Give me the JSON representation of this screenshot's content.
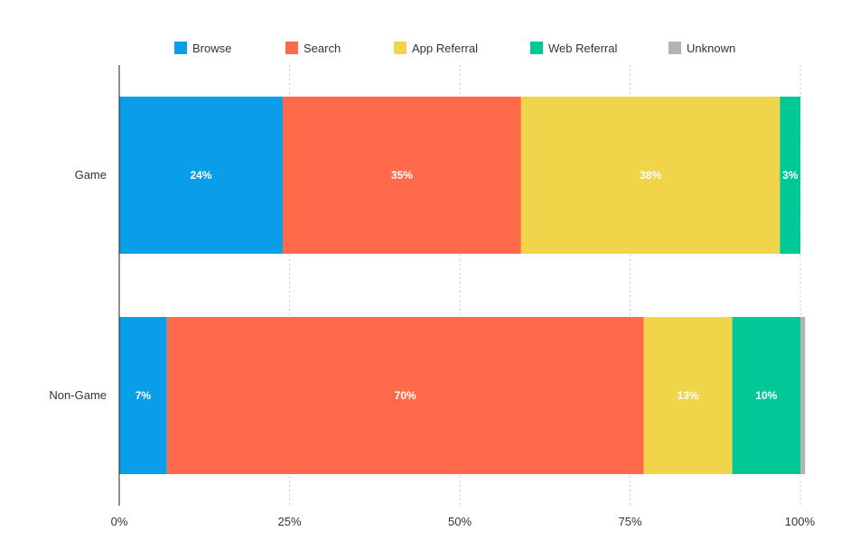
{
  "chart_data": {
    "type": "bar",
    "orientation": "horizontal",
    "stacked": true,
    "categories": [
      "Game",
      "Non-Game"
    ],
    "series": [
      {
        "name": "Browse",
        "color": "#0a9de8",
        "values": [
          24,
          7
        ],
        "labels": [
          "24%",
          "7%"
        ]
      },
      {
        "name": "Search",
        "color": "#ff6b4a",
        "values": [
          35,
          70
        ],
        "labels": [
          "35%",
          "70%"
        ]
      },
      {
        "name": "App Referral",
        "color": "#f0d44a",
        "values": [
          38,
          13
        ],
        "labels": [
          "38%",
          "13%"
        ]
      },
      {
        "name": "Web Referral",
        "color": "#00c896",
        "values": [
          3,
          10
        ],
        "labels": [
          "3%",
          "10%"
        ]
      },
      {
        "name": "Unknown",
        "color": "#b3b3b3",
        "values": [
          0,
          0.7
        ],
        "labels": [
          "",
          ""
        ]
      }
    ],
    "xlim": [
      0,
      100
    ],
    "xticks": [
      0,
      25,
      50,
      75,
      100
    ],
    "xtick_labels": [
      "0%",
      "25%",
      "50%",
      "75%",
      "100%"
    ],
    "grid": "vertical dotted",
    "legend": "top"
  }
}
